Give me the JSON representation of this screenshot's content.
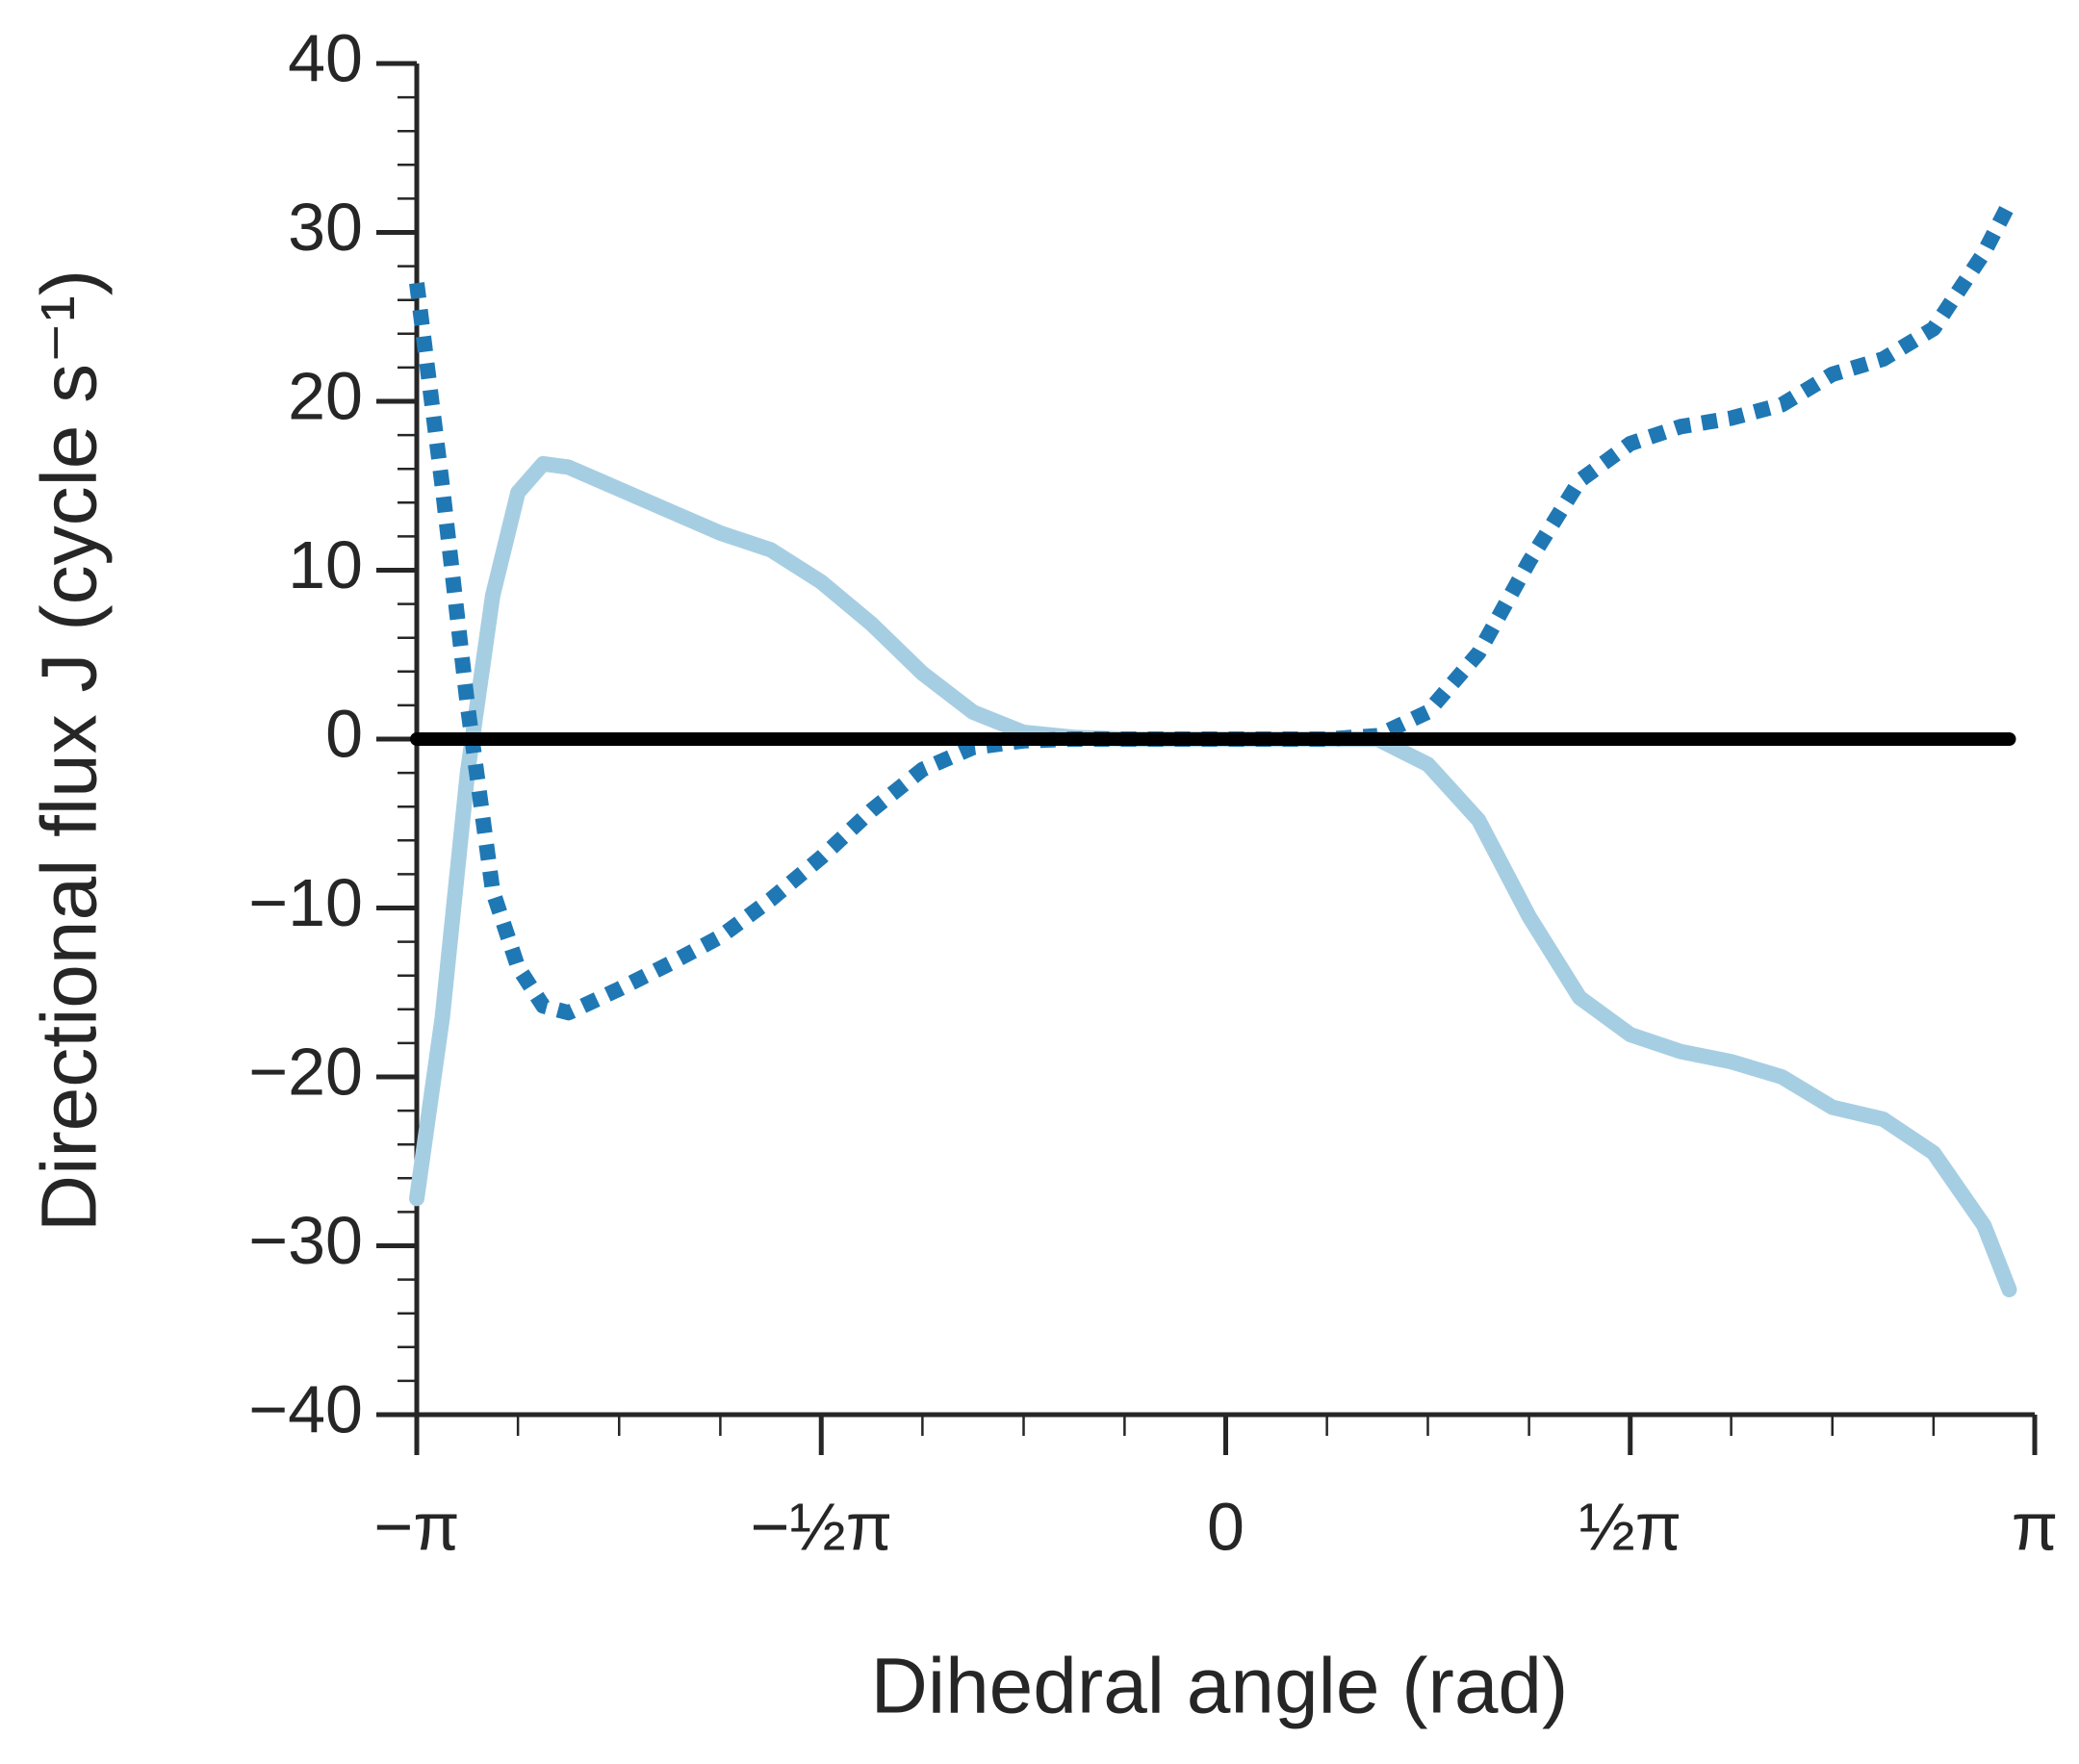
{
  "chart_data": {
    "type": "line",
    "xlabel": "Dihedral angle (rad)",
    "ylabel": "Directional flux J (cycle s⁻¹)",
    "xlim": [
      -3.142,
      3.142
    ],
    "ylim": [
      -40,
      40
    ],
    "xticks": [
      {
        "value": -3.142,
        "label": "−π"
      },
      {
        "value": -1.571,
        "label": "−½π"
      },
      0,
      {
        "value": 1.571,
        "label": "½π"
      },
      {
        "value": 3.142,
        "label": "π"
      }
    ],
    "xminorticks": [
      -2.749,
      -2.356,
      -1.963,
      -1.178,
      -0.785,
      -0.393,
      0.393,
      0.785,
      1.178,
      1.963,
      2.356,
      2.749
    ],
    "yticks": [
      {
        "value": -40,
        "label": "−40"
      },
      {
        "value": -30,
        "label": "−30"
      },
      {
        "value": -20,
        "label": "−20"
      },
      {
        "value": -10,
        "label": "−10"
      },
      0,
      10,
      20,
      30,
      40
    ],
    "yminorticks": [
      -38,
      -36,
      -34,
      -32,
      -28,
      -26,
      -24,
      -22,
      -18,
      -16,
      -14,
      -12,
      -8,
      -6,
      -4,
      -2,
      2,
      4,
      6,
      8,
      12,
      14,
      16,
      18,
      22,
      24,
      26,
      28,
      32,
      34,
      36,
      38
    ],
    "series": [
      {
        "color": "#a6cee3",
        "style": "solid",
        "x": [
          -3.142,
          -3.043,
          -2.945,
          -2.847,
          -2.749,
          -2.651,
          -2.553,
          -2.356,
          -2.16,
          -1.963,
          -1.767,
          -1.571,
          -1.374,
          -1.178,
          -0.982,
          -0.785,
          -0.589,
          -0.393,
          -0.196,
          0,
          0.196,
          0.393,
          0.589,
          0.785,
          0.982,
          1.178,
          1.374,
          1.571,
          1.767,
          1.963,
          2.16,
          2.356,
          2.553,
          2.749,
          2.945,
          3.043
        ],
        "values": [
          -27.2,
          -16.5,
          -2,
          8.5,
          14.6,
          16.3,
          16.1,
          14.8,
          13.5,
          12.2,
          11.2,
          9.3,
          6.8,
          3.9,
          1.6,
          0.4,
          0.1,
          0,
          0,
          0,
          0,
          0,
          0,
          -1.5,
          -4.8,
          -10.5,
          -15.3,
          -17.5,
          -18.5,
          -19.1,
          -20.0,
          -21.8,
          -22.5,
          -24.5,
          -28.8,
          -32.6
        ]
      },
      {
        "color": "#1f78b4",
        "style": "dotted",
        "x": [
          -3.142,
          -3.043,
          -2.945,
          -2.847,
          -2.749,
          -2.651,
          -2.553,
          -2.356,
          -2.16,
          -1.963,
          -1.767,
          -1.571,
          -1.374,
          -1.178,
          -0.982,
          -0.785,
          -0.589,
          -0.393,
          -0.196,
          0,
          0.196,
          0.393,
          0.589,
          0.785,
          0.982,
          1.178,
          1.374,
          1.571,
          1.767,
          1.963,
          2.16,
          2.356,
          2.553,
          2.749,
          2.945,
          3.043
        ],
        "values": [
          27,
          15,
          2,
          -9,
          -13.5,
          -15.8,
          -16.2,
          -14.8,
          -13.3,
          -11.7,
          -9.5,
          -7,
          -4.2,
          -1.8,
          -0.5,
          -0.1,
          0,
          0,
          0,
          0,
          0,
          0,
          0.2,
          1.6,
          5.1,
          10.5,
          15.3,
          17.5,
          18.5,
          19.0,
          19.8,
          21.6,
          22.5,
          24.3,
          28.8,
          31.7
        ]
      },
      {
        "color": "#000000",
        "style": "solid",
        "x": [
          -3.142,
          3.043
        ],
        "values": [
          0,
          0
        ]
      }
    ]
  }
}
